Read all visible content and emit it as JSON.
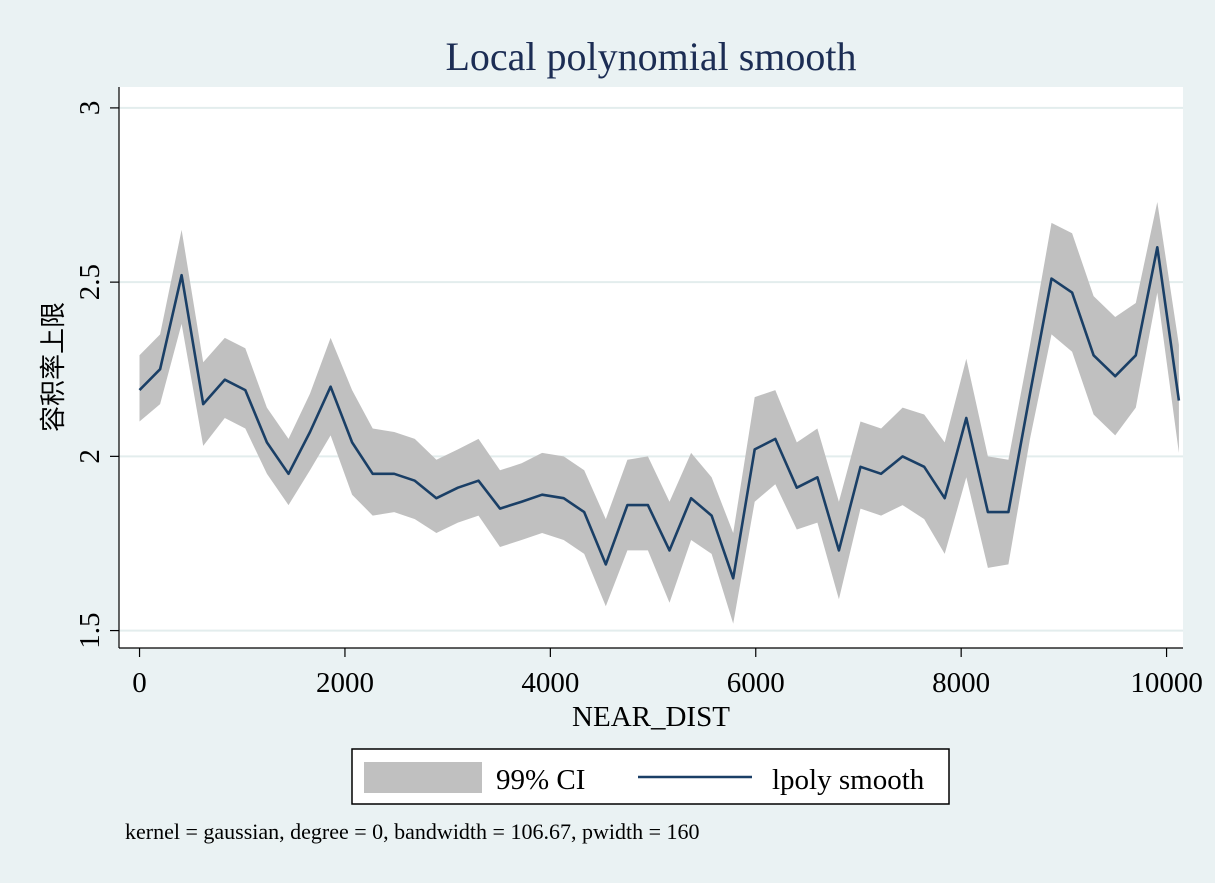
{
  "chart_data": {
    "type": "area",
    "title": "Local polynomial smooth",
    "xlabel": "NEAR_DIST",
    "ylabel": "容积率上限",
    "xlim": [
      -200,
      10160
    ],
    "ylim": [
      1.45,
      3.06
    ],
    "x_ticks": [
      0,
      2000,
      4000,
      6000,
      8000,
      10000
    ],
    "x_tick_labels": [
      "0",
      "2000",
      "4000",
      "6000",
      "8000",
      "10000"
    ],
    "y_ticks": [
      1.5,
      2,
      2.5,
      3
    ],
    "y_tick_labels": [
      "1.5",
      "2",
      "2.5",
      "3"
    ],
    "grid": true,
    "legend_position": "bottom",
    "note": "kernel = gaussian, degree = 0, bandwidth = 106.67, pwidth = 160",
    "colors": {
      "ci": "#c0c0c0",
      "line": "#1a3f66",
      "background": "#eaf2f3"
    },
    "x": [
      0,
      200,
      410,
      620,
      830,
      1030,
      1240,
      1450,
      1660,
      1860,
      2070,
      2270,
      2480,
      2680,
      2890,
      3100,
      3300,
      3510,
      3720,
      3920,
      4130,
      4330,
      4540,
      4750,
      4950,
      5160,
      5370,
      5570,
      5780,
      5990,
      6190,
      6400,
      6600,
      6810,
      7020,
      7220,
      7430,
      7640,
      7840,
      8050,
      8260,
      8460,
      8670,
      8880,
      9080,
      9290,
      9500,
      9700,
      9910,
      10120
    ],
    "series": [
      {
        "name": "lpoly smooth",
        "values": [
          2.19,
          2.25,
          2.52,
          2.15,
          2.22,
          2.19,
          2.04,
          1.95,
          2.07,
          2.2,
          2.04,
          1.95,
          1.95,
          1.93,
          1.88,
          1.91,
          1.93,
          1.85,
          1.87,
          1.89,
          1.88,
          1.84,
          1.69,
          1.86,
          1.86,
          1.73,
          1.88,
          1.83,
          1.65,
          2.02,
          2.05,
          1.91,
          1.94,
          1.73,
          1.97,
          1.95,
          2.0,
          1.97,
          1.88,
          2.11,
          1.84,
          1.84,
          2.18,
          2.51,
          2.47,
          2.29,
          2.23,
          2.29,
          2.6,
          2.16
        ]
      },
      {
        "name": "99% CI",
        "lower": [
          2.1,
          2.15,
          2.38,
          2.03,
          2.11,
          2.08,
          1.95,
          1.86,
          1.96,
          2.06,
          1.89,
          1.83,
          1.84,
          1.82,
          1.78,
          1.81,
          1.83,
          1.74,
          1.76,
          1.78,
          1.76,
          1.72,
          1.57,
          1.73,
          1.73,
          1.58,
          1.76,
          1.72,
          1.52,
          1.87,
          1.92,
          1.79,
          1.81,
          1.59,
          1.85,
          1.83,
          1.86,
          1.82,
          1.72,
          1.94,
          1.68,
          1.69,
          2.05,
          2.35,
          2.3,
          2.12,
          2.06,
          2.14,
          2.47,
          2.01
        ],
        "upper": [
          2.29,
          2.35,
          2.65,
          2.27,
          2.34,
          2.31,
          2.14,
          2.05,
          2.18,
          2.34,
          2.19,
          2.08,
          2.07,
          2.05,
          1.99,
          2.02,
          2.05,
          1.96,
          1.98,
          2.01,
          2.0,
          1.96,
          1.82,
          1.99,
          2.0,
          1.87,
          2.01,
          1.94,
          1.78,
          2.17,
          2.19,
          2.04,
          2.08,
          1.87,
          2.1,
          2.08,
          2.14,
          2.12,
          2.04,
          2.28,
          2.0,
          1.99,
          2.32,
          2.67,
          2.64,
          2.46,
          2.4,
          2.44,
          2.73,
          2.32
        ]
      }
    ],
    "legend": [
      {
        "label": "99% CI",
        "kind": "area"
      },
      {
        "label": "lpoly smooth",
        "kind": "line"
      }
    ]
  }
}
